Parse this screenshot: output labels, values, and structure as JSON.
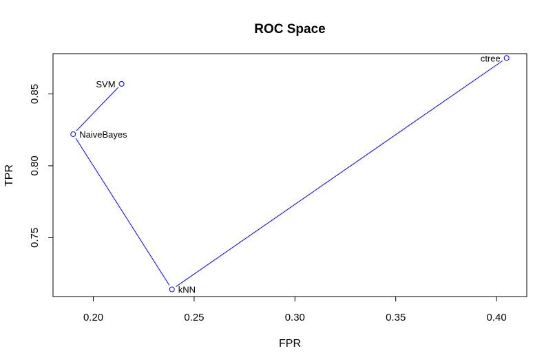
{
  "chart_data": {
    "type": "line",
    "title": "ROC Space",
    "xlabel": "FPR",
    "ylabel": "TPR",
    "xlim": [
      0.18,
      0.415
    ],
    "ylim": [
      0.709,
      0.878
    ],
    "x_ticks": [
      0.2,
      0.25,
      0.3,
      0.35,
      0.4
    ],
    "x_tick_labels": [
      "0.20",
      "0.25",
      "0.30",
      "0.35",
      "0.40"
    ],
    "y_ticks": [
      0.75,
      0.8,
      0.85
    ],
    "y_tick_labels": [
      "0.75",
      "0.80",
      "0.85"
    ],
    "grid": false,
    "line_color": "#0000ff",
    "marker_color": "#0000ff",
    "path_order": [
      "SVM",
      "NaiveBayes",
      "kNN",
      "ctree"
    ],
    "points": [
      {
        "label": "SVM",
        "x": 0.214,
        "y": 0.857,
        "label_side": "left"
      },
      {
        "label": "NaiveBayes",
        "x": 0.19,
        "y": 0.822,
        "label_side": "right"
      },
      {
        "label": "kNN",
        "x": 0.239,
        "y": 0.714,
        "label_side": "right"
      },
      {
        "label": "ctree",
        "x": 0.405,
        "y": 0.875,
        "label_side": "left"
      }
    ]
  }
}
